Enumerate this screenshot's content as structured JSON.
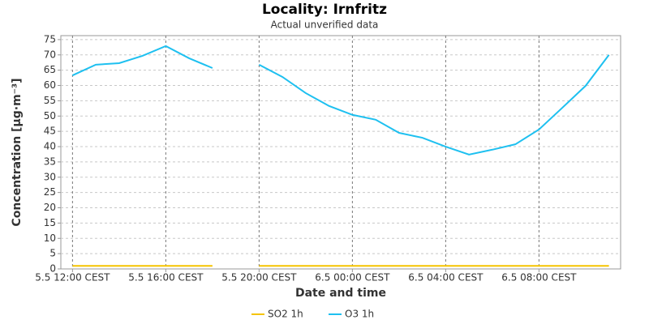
{
  "chart_data": {
    "type": "line",
    "title": "Locality: Irnfritz",
    "subtitle": "Actual unverified data",
    "x_label": "Date and time",
    "y_label": "Concentration [µg·m⁻³]",
    "categories": [
      "5.5 12:00 CEST",
      null,
      null,
      null,
      "5.5 16:00 CEST",
      null,
      null,
      null,
      "5.5 20:00 CEST",
      null,
      null,
      null,
      "6.5 00:00 CEST",
      null,
      null,
      null,
      "6.5 04:00 CEST",
      null,
      null,
      null,
      "6.5 08:00 CEST",
      null,
      null,
      null
    ],
    "series": [
      {
        "name": "SO2 1h",
        "color": "#f5c400",
        "values": [
          1,
          1,
          1,
          1,
          1,
          1,
          1,
          null,
          1,
          1,
          1,
          1,
          1,
          1,
          1,
          1,
          1,
          1,
          1,
          1,
          1,
          1,
          1,
          1
        ]
      },
      {
        "name": "O3 1h",
        "color": "#1ec0f0",
        "values": [
          63.3,
          66.8,
          67.3,
          69.7,
          72.9,
          68.9,
          65.7,
          null,
          66.8,
          62.8,
          57.5,
          53.3,
          50.4,
          48.8,
          44.5,
          42.9,
          40.0,
          37.4,
          39.0,
          40.8,
          45.6,
          52.7,
          59.9,
          70.0
        ]
      }
    ],
    "ylim": [
      0,
      76.3
    ],
    "yticks": [
      0,
      5,
      10,
      15,
      20,
      25,
      30,
      35,
      40,
      45,
      50,
      55,
      60,
      65,
      70,
      75
    ],
    "grid": true,
    "legend": "bottom"
  }
}
